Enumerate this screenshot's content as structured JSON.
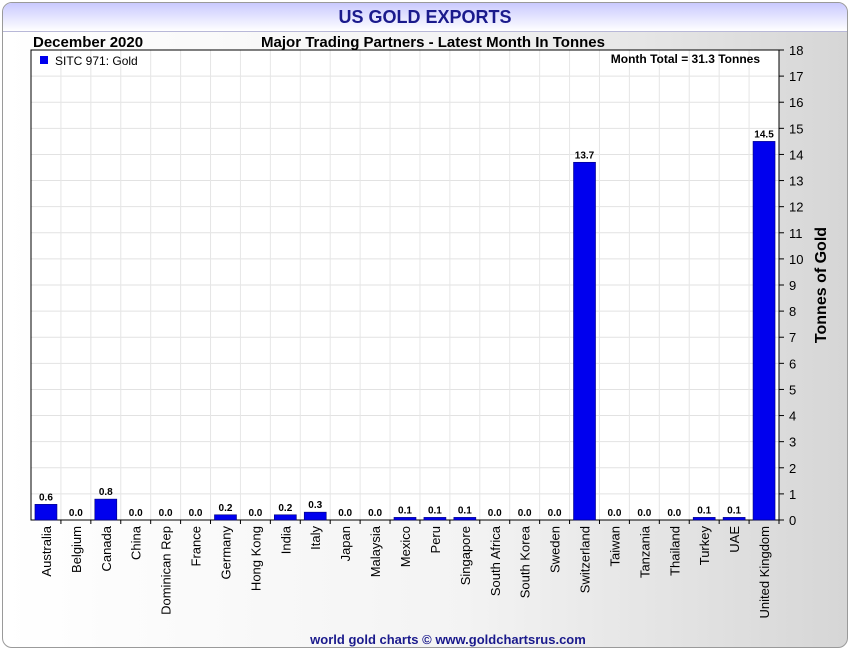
{
  "header": {
    "title": "US GOLD EXPORTS",
    "month": "December 2020",
    "subtitle": "Major Trading Partners - Latest Month In Tonnes"
  },
  "footer": {
    "text": "world gold charts © www.goldchartsrus.com"
  },
  "chart_data": {
    "type": "bar",
    "title": "US GOLD EXPORTS",
    "subtitle": "Major Trading Partners - Latest Month In Tonnes",
    "ylabel": "Tonnes of Gold",
    "xlabel": "",
    "ylim": [
      0,
      18
    ],
    "yticks": [
      0,
      1,
      2,
      3,
      4,
      5,
      6,
      7,
      8,
      9,
      10,
      11,
      12,
      13,
      14,
      15,
      16,
      17,
      18
    ],
    "y_axis_side": "right",
    "grid": true,
    "legend_position": "top-left",
    "annotation": "Month Total = 31.3 Tonnes",
    "categories": [
      "Australia",
      "Belgium",
      "Canada",
      "China",
      "Dominican Rep",
      "France",
      "Germany",
      "Hong Kong",
      "India",
      "Italy",
      "Japan",
      "Malaysia",
      "Mexico",
      "Peru",
      "Singapore",
      "South Africa",
      "South Korea",
      "Sweden",
      "Switzerland",
      "Taiwan",
      "Tanzania",
      "Thailand",
      "Turkey",
      "UAE",
      "United Kingdom"
    ],
    "series": [
      {
        "name": "SITC 971: Gold",
        "color": "#0000ee",
        "values": [
          0.6,
          0.0,
          0.8,
          0.0,
          0.0,
          0.0,
          0.2,
          0.0,
          0.2,
          0.3,
          0.0,
          0.0,
          0.1,
          0.1,
          0.1,
          0.0,
          0.0,
          0.0,
          13.7,
          0.0,
          0.0,
          0.0,
          0.1,
          0.1,
          14.5
        ],
        "labels": [
          "0.6",
          "0.0",
          "0.8",
          "0.0",
          "0.0",
          "0.0",
          "0.2",
          "0.0",
          "0.2",
          "0.3",
          "0.0",
          "0.0",
          "0.1",
          "0.1",
          "0.1",
          "0.0",
          "0.0",
          "0.0",
          "13.7",
          "0.0",
          "0.0",
          "0.0",
          "0.1",
          "0.1",
          "14.5"
        ]
      }
    ]
  }
}
